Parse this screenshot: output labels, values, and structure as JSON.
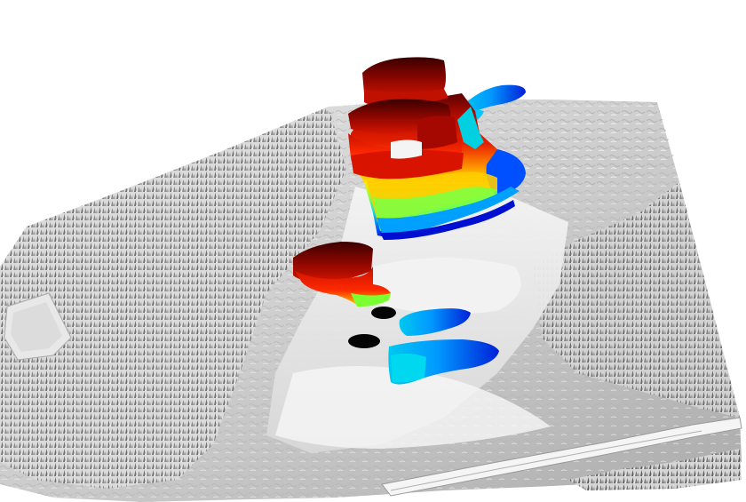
{
  "scene": {
    "background": "#ffffff",
    "terrain_color": "#c8c8c8",
    "forest_color": "#8e8e8e",
    "volume_palette": [
      "#0010d0",
      "#0070ff",
      "#00d8ff",
      "#60ff60",
      "#ffff00",
      "#ff9000",
      "#e01000",
      "#5a0000"
    ]
  }
}
